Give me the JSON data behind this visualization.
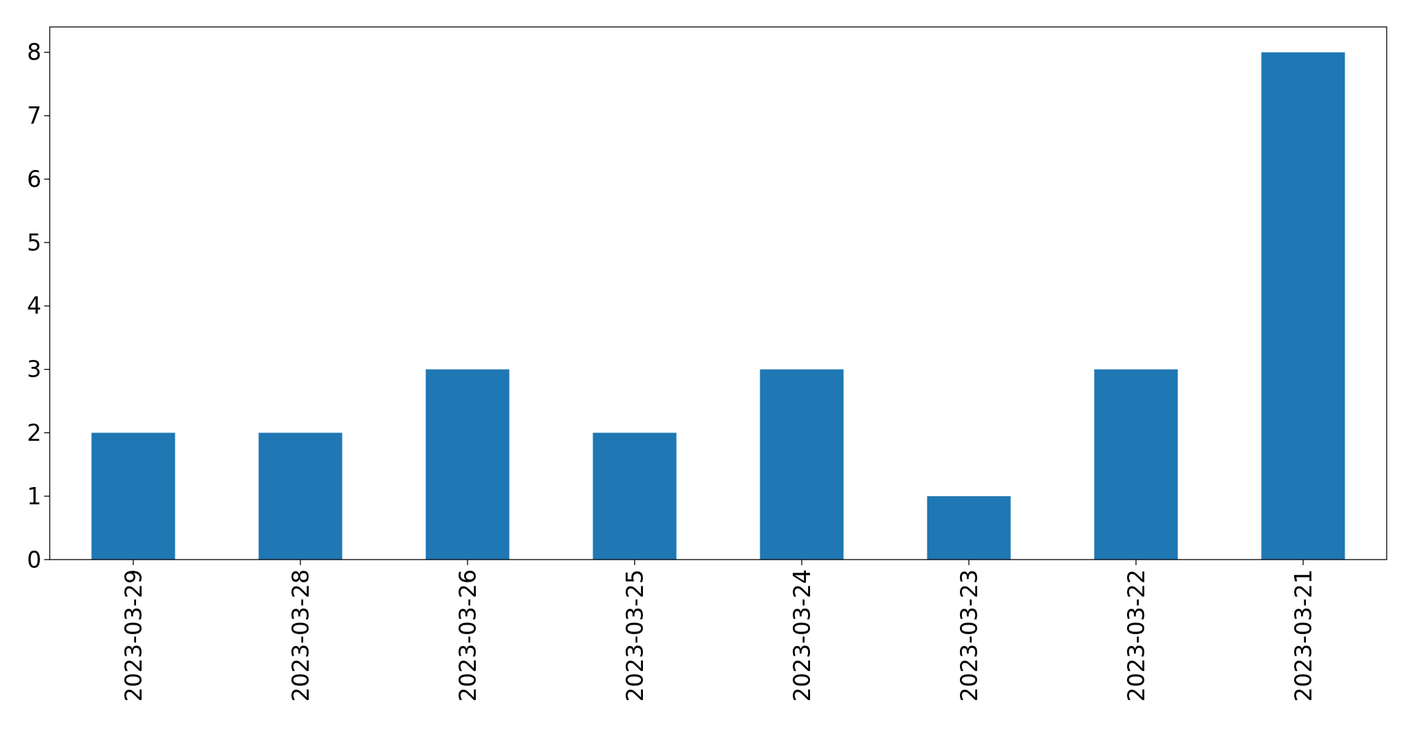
{
  "chart_data": {
    "type": "bar",
    "categories": [
      "2023-03-29",
      "2023-03-28",
      "2023-03-26",
      "2023-03-25",
      "2023-03-24",
      "2023-03-23",
      "2023-03-22",
      "2023-03-21"
    ],
    "values": [
      2,
      2,
      3,
      2,
      3,
      1,
      3,
      8
    ],
    "color": "#1f77b4",
    "ylim": [
      0,
      8.4
    ],
    "yticks": [
      0,
      1,
      2,
      3,
      4,
      5,
      6,
      7,
      8
    ],
    "grid": false
  }
}
